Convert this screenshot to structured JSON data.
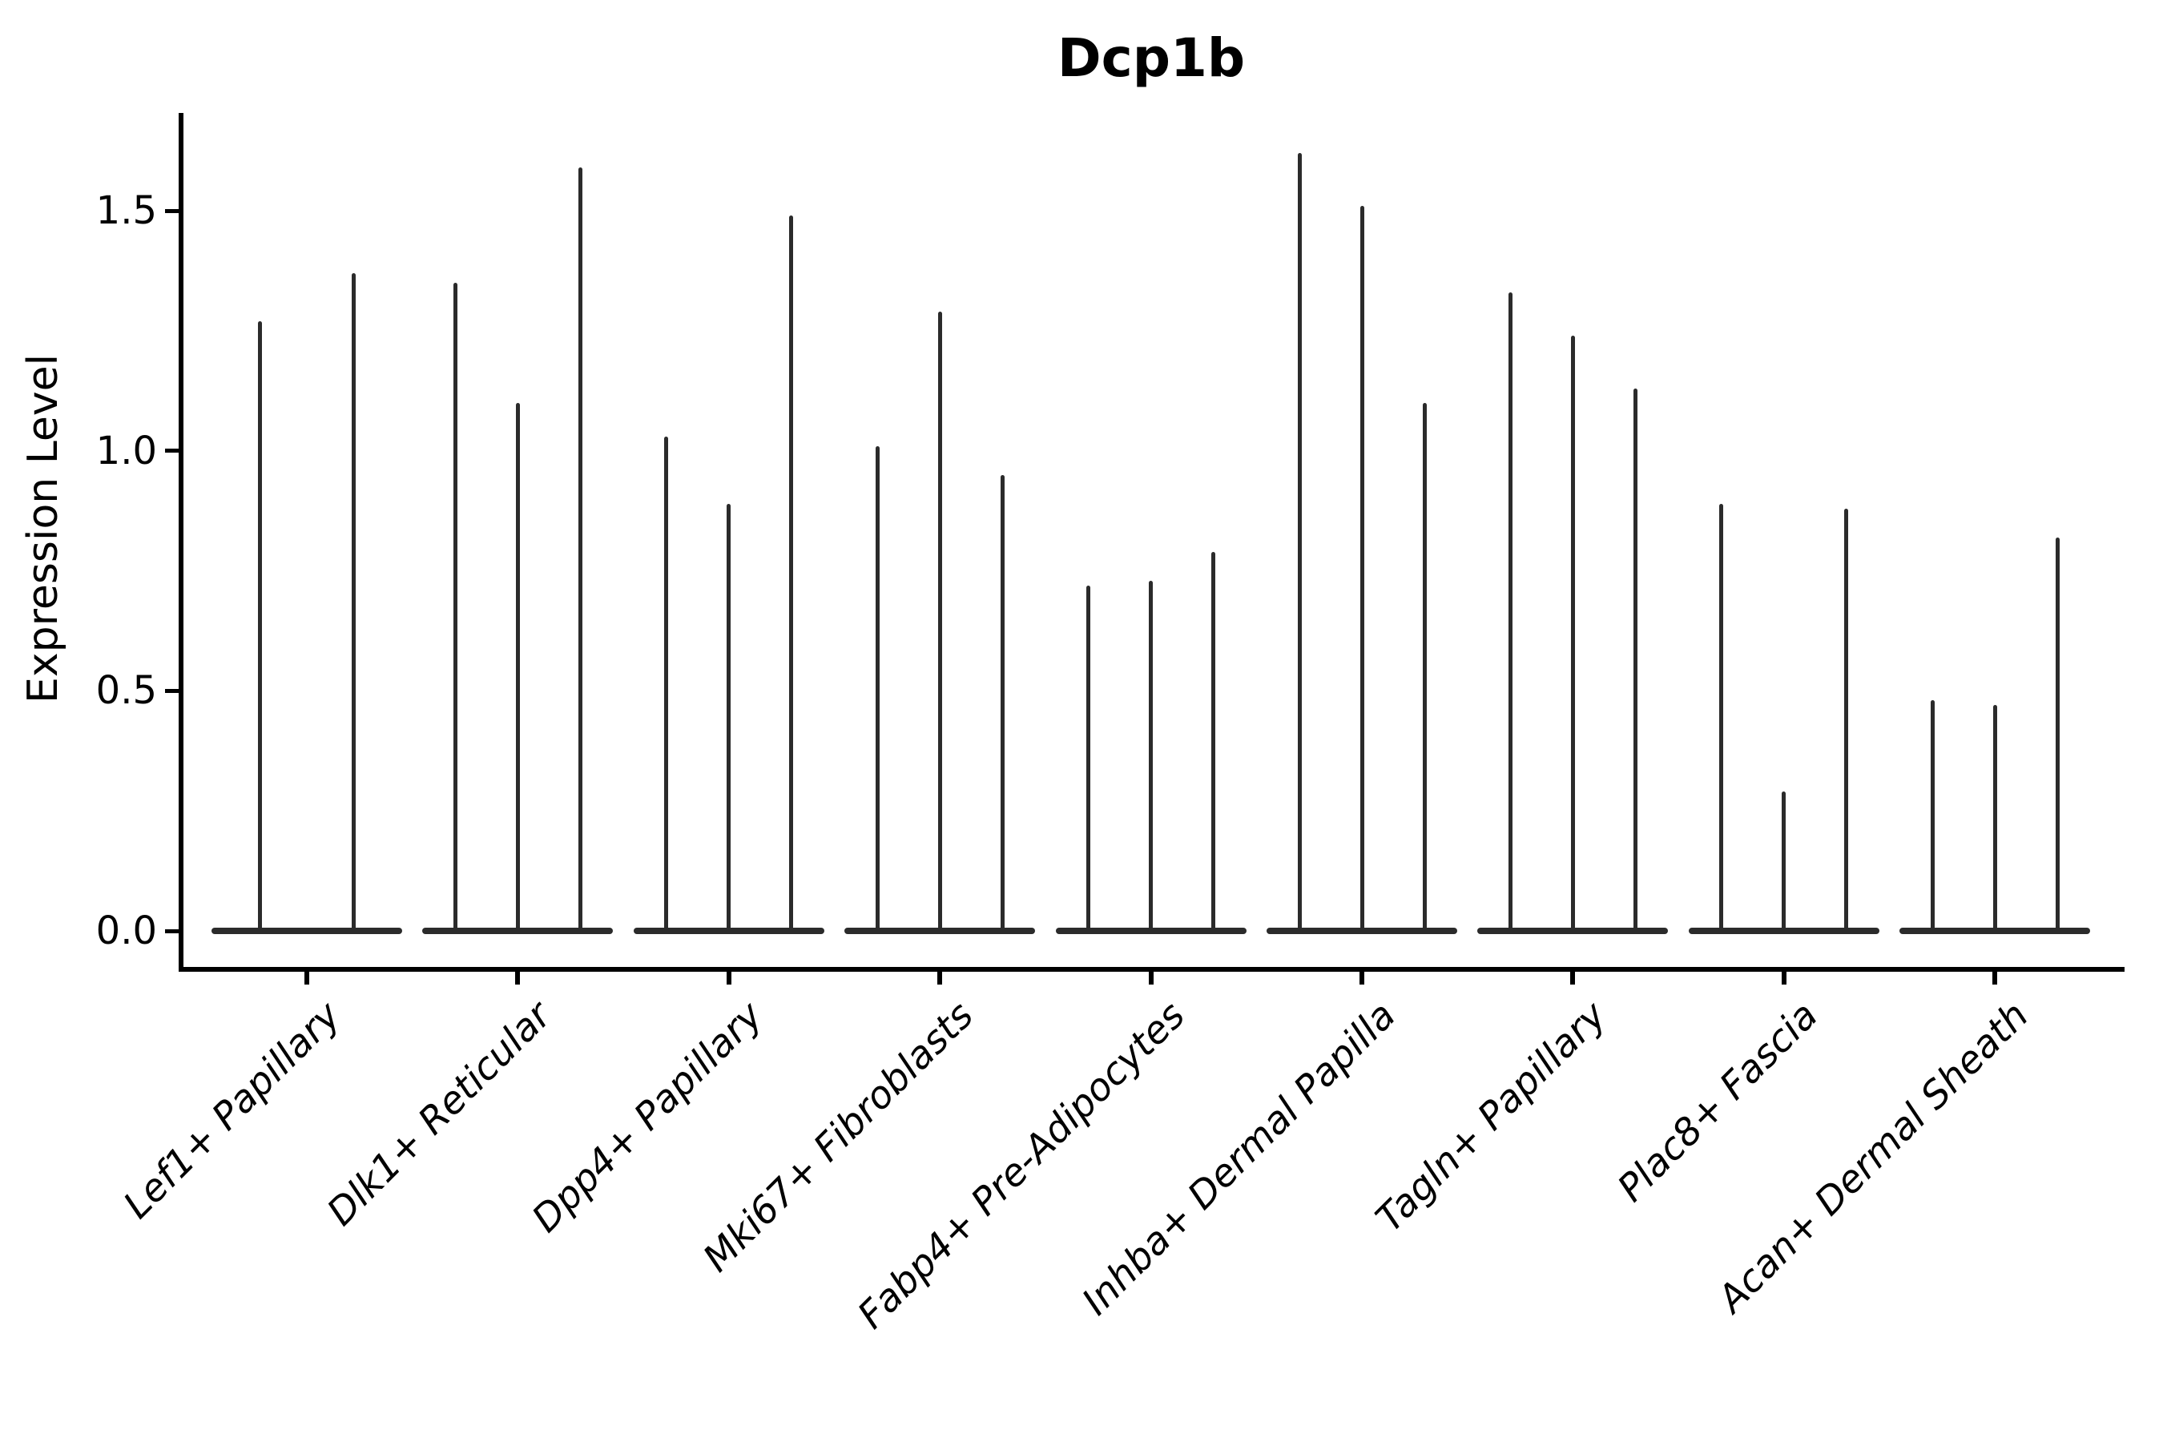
{
  "figure": {
    "title": "Dcp1b",
    "ylabel": "Expression Level"
  },
  "chart_data": {
    "type": "violin",
    "title": "Dcp1b",
    "xlabel": "",
    "ylabel": "Expression Level",
    "ylim": [
      0,
      1.7
    ],
    "grid": false,
    "legend": "none",
    "ink_color": "#2b2b2b",
    "spine_color": "#000000",
    "yticks": [
      {
        "label": "0.0",
        "value": 0.0
      },
      {
        "label": "0.5",
        "value": 0.5
      },
      {
        "label": "1.0",
        "value": 1.0
      },
      {
        "label": "1.5",
        "value": 1.5
      }
    ],
    "categories": [
      "Lef1+ Papillary",
      "Dlk1+ Reticular",
      "Dpp4+ Papillary",
      "Mki67+ Fibroblasts",
      "Fabp4+ Pre-Adipocytes",
      "Inhba+ Dermal Papilla",
      "Tagln+ Papillary",
      "Plac8+ Fascia",
      "Acan+ Dermal Sheath"
    ],
    "groups": [
      {
        "label": "Lef1+ Papillary",
        "violin_max_values": [
          1.27,
          1.37
        ]
      },
      {
        "label": "Dlk1+ Reticular",
        "violin_max_values": [
          1.35,
          1.1,
          1.59
        ]
      },
      {
        "label": "Dpp4+ Papillary",
        "violin_max_values": [
          1.03,
          0.89,
          1.49
        ]
      },
      {
        "label": "Mki67+ Fibroblasts",
        "violin_max_values": [
          1.01,
          1.29,
          0.95
        ]
      },
      {
        "label": "Fabp4+ Pre-Adipocytes",
        "violin_max_values": [
          0.72,
          0.73,
          0.79
        ]
      },
      {
        "label": "Inhba+ Dermal Papilla",
        "violin_max_values": [
          1.62,
          1.51,
          1.1
        ]
      },
      {
        "label": "Tagln+ Papillary",
        "violin_max_values": [
          1.33,
          1.24,
          1.13
        ]
      },
      {
        "label": "Plac8+ Fascia",
        "violin_max_values": [
          0.89,
          0.29,
          0.88
        ]
      },
      {
        "label": "Acan+ Dermal Sheath",
        "violin_max_values": [
          0.48,
          0.47,
          0.82
        ]
      }
    ]
  }
}
